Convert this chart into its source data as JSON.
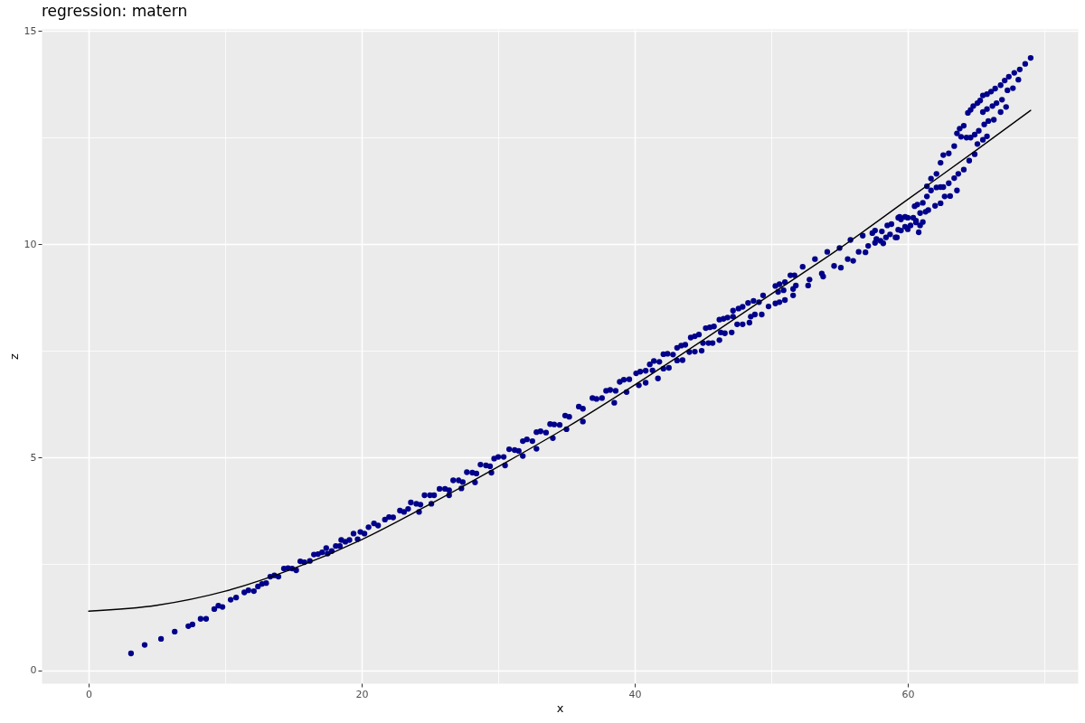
{
  "chart_data": {
    "type": "scatter",
    "title": "regression: matern",
    "xlabel": "x",
    "ylabel": "z",
    "xlim": [
      -3.45,
      72.45
    ],
    "ylim": [
      -0.3,
      15.05
    ],
    "xticks": [
      0,
      {
        "value": 10,
        "label": null
      },
      20,
      {
        "value": 30,
        "label": null
      },
      40,
      {
        "value": 50,
        "label": null
      },
      60,
      {
        "value": 70,
        "label": null
      }
    ],
    "yticks": [
      0,
      {
        "value": 2.5,
        "label": null
      },
      5,
      {
        "value": 7.5,
        "label": null
      },
      10,
      {
        "value": 12.5,
        "label": null
      },
      15
    ],
    "grid": true,
    "series": [
      {
        "color": "#00008b",
        "marker": "circle",
        "x": [
          3.1,
          4.1,
          5.3,
          6.3,
          7.3,
          7.6,
          8.2,
          8.6,
          9.2,
          9.5,
          9.8,
          10.4,
          10.8,
          11.4,
          11.7,
          12.1,
          12.4,
          12.7,
          13.0,
          13.3,
          13.6,
          13.9,
          14.3,
          14.6,
          14.9,
          15.2,
          15.5,
          15.8,
          16.2,
          16.5,
          16.8,
          17.1,
          17.4,
          17.5,
          17.8,
          18.1,
          18.4,
          18.5,
          18.8,
          19.1,
          19.4,
          19.7,
          19.9,
          20.2,
          20.5,
          20.9,
          21.2,
          21.7,
          22.0,
          22.3,
          22.8,
          23.1,
          23.4,
          23.6,
          24.0,
          24.3,
          24.2,
          24.6,
          25.0,
          25.3,
          25.1,
          25.7,
          26.1,
          26.4,
          26.4,
          26.7,
          27.1,
          27.4,
          27.3,
          27.7,
          28.1,
          28.4,
          28.3,
          28.7,
          29.1,
          29.4,
          29.5,
          29.7,
          30.0,
          30.4,
          30.5,
          30.8,
          31.2,
          31.5,
          31.8,
          31.8,
          32.1,
          32.5,
          32.8,
          32.8,
          33.1,
          33.5,
          34.0,
          33.8,
          34.1,
          34.5,
          34.9,
          35.2,
          35.0,
          35.9,
          36.2,
          36.2,
          36.9,
          37.2,
          37.6,
          37.9,
          38.2,
          38.6,
          38.5,
          38.9,
          39.2,
          39.6,
          39.4,
          40.1,
          40.4,
          40.8,
          40.3,
          40.8,
          41.7,
          41.1,
          41.4,
          41.8,
          41.3,
          42.1,
          42.5,
          42.1,
          42.4,
          42.8,
          43.1,
          43.5,
          43.1,
          43.4,
          43.7,
          44.0,
          44.4,
          44.9,
          44.1,
          44.4,
          44.7,
          45.0,
          45.4,
          45.7,
          46.2,
          45.2,
          45.5,
          45.8,
          46.3,
          46.6,
          47.1,
          46.2,
          46.5,
          46.8,
          47.2,
          47.5,
          47.9,
          48.4,
          47.2,
          47.6,
          47.9,
          48.3,
          48.5,
          48.8,
          49.3,
          48.7,
          49.1,
          49.4,
          49.8,
          50.3,
          50.6,
          51.0,
          51.6,
          50.3,
          50.6,
          51.0,
          51.4,
          51.7,
          50.5,
          50.9,
          51.6,
          52.3,
          53.2,
          54.1,
          55.0,
          55.8,
          56.7,
          57.6,
          58.5,
          59.3,
          60.0,
          51.8,
          52.8,
          53.7,
          54.6,
          55.6,
          56.4,
          57.6,
          58.7,
          59.5,
          60.2,
          52.7,
          53.8,
          55.1,
          56.0,
          56.9,
          58.2,
          59.1,
          60.6,
          57.1,
          58.0,
          59.3,
          59.8,
          60.6,
          59.5,
          60.5,
          60.9,
          61.3,
          60.8,
          57.4,
          58.1,
          58.8,
          59.4,
          59.8,
          60.4,
          61.1,
          57.7,
          58.4,
          59.2,
          60.0,
          60.9,
          60.7,
          61.1,
          61.4,
          61.7,
          62.1,
          62.4,
          62.6,
          63.0,
          63.4,
          63.6,
          63.8,
          64.1,
          64.4,
          64.6,
          64.8,
          65.1,
          65.3,
          65.5,
          65.8,
          66.1,
          66.4,
          66.8,
          67.1,
          67.4,
          67.8,
          68.2,
          68.6,
          69.0,
          63.9,
          64.3,
          64.6,
          64.9,
          65.2,
          65.5,
          65.8,
          66.2,
          66.5,
          66.9,
          67.3,
          67.7,
          68.1,
          61.4,
          61.7,
          62.1,
          62.4,
          62.6,
          63.0,
          63.4,
          63.7,
          64.1,
          64.5,
          64.9,
          65.1,
          65.5,
          65.8,
          65.6,
          65.9,
          66.3,
          66.8,
          67.2,
          61.5,
          62.0,
          62.4,
          62.7,
          63.1,
          63.6
        ],
        "values": [
          0.4,
          0.6,
          0.74,
          0.91,
          1.04,
          1.08,
          1.21,
          1.21,
          1.44,
          1.52,
          1.49,
          1.66,
          1.71,
          1.83,
          1.88,
          1.86,
          1.97,
          2.03,
          2.05,
          2.2,
          2.23,
          2.2,
          2.39,
          2.4,
          2.39,
          2.35,
          2.56,
          2.54,
          2.57,
          2.72,
          2.73,
          2.77,
          2.87,
          2.74,
          2.8,
          2.92,
          2.92,
          3.06,
          3.02,
          3.06,
          3.21,
          3.08,
          3.25,
          3.21,
          3.36,
          3.45,
          3.4,
          3.54,
          3.6,
          3.59,
          3.75,
          3.72,
          3.79,
          3.94,
          3.91,
          3.89,
          3.72,
          4.11,
          4.11,
          4.11,
          3.91,
          4.26,
          4.26,
          4.23,
          4.11,
          4.46,
          4.46,
          4.42,
          4.27,
          4.65,
          4.64,
          4.62,
          4.41,
          4.83,
          4.81,
          4.79,
          4.64,
          4.97,
          5.01,
          5.01,
          4.81,
          5.19,
          5.17,
          5.15,
          5.03,
          5.38,
          5.42,
          5.38,
          5.2,
          5.59,
          5.61,
          5.58,
          5.45,
          5.78,
          5.77,
          5.76,
          5.98,
          5.95,
          5.66,
          6.19,
          6.14,
          5.84,
          6.39,
          6.37,
          6.39,
          6.56,
          6.58,
          6.56,
          6.28,
          6.77,
          6.82,
          6.83,
          6.53,
          6.97,
          7.01,
          7.03,
          6.69,
          6.75,
          6.85,
          7.18,
          7.26,
          7.24,
          7.04,
          7.08,
          7.1,
          7.42,
          7.43,
          7.41,
          7.27,
          7.28,
          7.57,
          7.62,
          7.64,
          7.47,
          7.48,
          7.5,
          7.81,
          7.84,
          7.88,
          7.68,
          7.68,
          7.68,
          7.75,
          8.03,
          8.05,
          8.07,
          7.93,
          7.91,
          7.93,
          8.23,
          8.25,
          8.28,
          8.3,
          8.12,
          8.12,
          8.16,
          8.44,
          8.49,
          8.53,
          8.62,
          8.3,
          8.35,
          8.35,
          8.67,
          8.64,
          8.8,
          8.54,
          8.61,
          8.64,
          8.69,
          8.8,
          9.02,
          9.06,
          9.11,
          9.27,
          9.27,
          8.88,
          8.92,
          8.95,
          9.47,
          9.65,
          9.82,
          9.91,
          10.1,
          10.2,
          10.32,
          10.44,
          10.62,
          10.62,
          9.03,
          9.17,
          9.31,
          9.49,
          9.65,
          9.82,
          10.03,
          10.23,
          10.32,
          10.44,
          9.03,
          9.24,
          9.45,
          9.61,
          9.81,
          10.02,
          10.16,
          10.51,
          9.96,
          10.08,
          10.34,
          10.41,
          10.55,
          10.58,
          10.89,
          10.73,
          10.76,
          10.28,
          10.26,
          10.3,
          10.47,
          10.64,
          10.64,
          10.62,
          10.52,
          10.12,
          10.16,
          10.16,
          10.35,
          10.44,
          10.93,
          10.97,
          11.36,
          11.54,
          11.65,
          11.91,
          12.09,
          12.13,
          12.3,
          12.6,
          12.71,
          12.78,
          13.08,
          13.15,
          13.24,
          13.31,
          13.37,
          13.49,
          13.52,
          13.58,
          13.65,
          13.73,
          13.84,
          13.93,
          14.02,
          14.1,
          14.23,
          14.37,
          12.52,
          12.5,
          12.5,
          12.57,
          12.66,
          13.1,
          13.17,
          13.24,
          13.31,
          13.39,
          13.61,
          13.66,
          13.86,
          11.12,
          11.26,
          11.33,
          11.34,
          11.34,
          11.43,
          11.55,
          11.65,
          11.75,
          11.96,
          12.11,
          12.35,
          12.45,
          12.53,
          12.81,
          12.89,
          12.92,
          13.1,
          13.22,
          10.8,
          10.9,
          10.96,
          11.12,
          11.13,
          11.26
        ]
      },
      {
        "type": "line",
        "color": "#000000",
        "line_style": "solid",
        "x": [
          0,
          5,
          10,
          15,
          20,
          25,
          30,
          35,
          40,
          45,
          50,
          55,
          60,
          65,
          69
        ],
        "values": [
          1.39,
          1.53,
          1.86,
          2.39,
          3.07,
          3.9,
          4.78,
          5.7,
          6.7,
          7.75,
          8.83,
          9.9,
          11.05,
          12.2,
          13.14
        ]
      }
    ]
  }
}
